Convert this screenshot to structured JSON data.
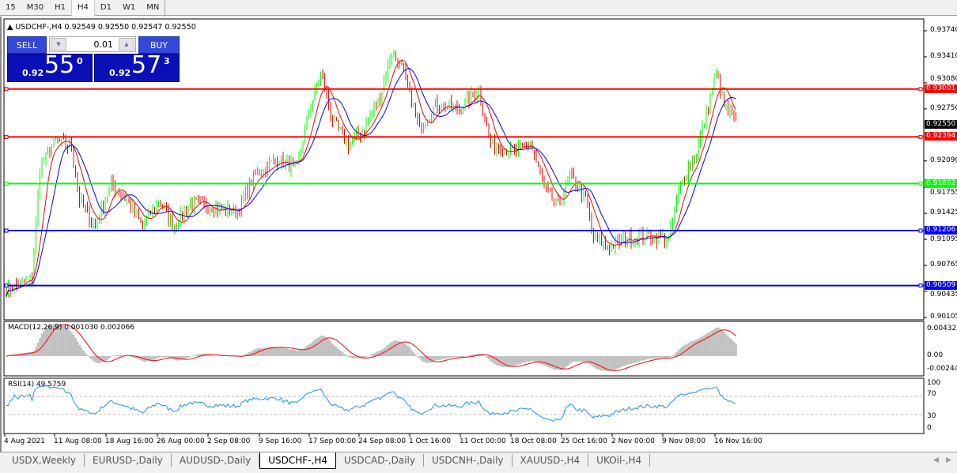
{
  "timeframes": [
    "15",
    "M30",
    "H1",
    "H4",
    "D1",
    "W1",
    "MN"
  ],
  "active_timeframe": "H4",
  "chart": {
    "symbol_line": "USDCHF-,H4  0.92549 0.92550 0.92547 0.92550"
  },
  "trade_panel": {
    "sell_label": "SELL",
    "buy_label": "BUY",
    "lot": "0.01",
    "sell_small": "0.92",
    "sell_big": "55",
    "sell_sup": "0",
    "buy_small": "0.92",
    "buy_big": "57",
    "buy_sup": "3"
  },
  "price_axis": [
    "0.93740",
    "0.93410",
    "0.93080",
    "0.92750",
    "0.92090",
    "0.91755",
    "0.91425",
    "0.91095",
    "0.90765",
    "0.90435",
    "0.90105"
  ],
  "current_price": "0.92550",
  "hlines": [
    {
      "price": "0.93001",
      "color": "#ff0000"
    },
    {
      "price": "0.92394",
      "color": "#ff0000"
    },
    {
      "price": "0.91802",
      "color": "#00ff00"
    },
    {
      "price": "0.91206",
      "color": "#0000ff"
    },
    {
      "price": "0.90509",
      "color": "#0000ff"
    }
  ],
  "macd": {
    "label": "MACD(12,26,9) 0.001030 0.002066",
    "axis": [
      "0.004323",
      "0.00",
      "-0.002445"
    ]
  },
  "rsi": {
    "label": "RSI(14) 49.5759",
    "axis": [
      "100",
      "70",
      "30",
      "0"
    ]
  },
  "time_axis": [
    "4 Aug 2021",
    "11 Aug 08:00",
    "18 Aug 16:00",
    "26 Aug 00:00",
    "2 Sep 08:00",
    "9 Sep 16:00",
    "17 Sep 00:00",
    "24 Sep 08:00",
    "1 Oct 16:00",
    "11 Oct 00:00",
    "18 Oct 08:00",
    "25 Oct 16:00",
    "2 Nov 00:00",
    "9 Nov 08:00",
    "16 Nov 16:00"
  ],
  "tabs": [
    "USDX,Weekly",
    "EURUSD-,Daily",
    "AUDUSD-,Daily",
    "USDCHF-,H4",
    "USDCAD-,Daily",
    "USDCNH-,Daily",
    "XAUUSD-,H4",
    "UKOil-,H4"
  ],
  "active_tab": "USDCHF-,H4",
  "colors": {
    "bull": "#00ff00",
    "bear": "#ff0000",
    "ma_fast": "#ff0000",
    "ma_slow": "#0000ff",
    "macd_hist": "#c0c0c0",
    "macd_signal": "#ff0000",
    "rsi": "#1e90ff",
    "panel_blue": "#0a10b8"
  },
  "chart_data": {
    "type": "candlestick",
    "price_keypoints_by_bar": [
      [
        0,
        0.9045
      ],
      [
        13,
        0.906
      ],
      [
        17,
        0.92
      ],
      [
        25,
        0.9235
      ],
      [
        33,
        0.9225
      ],
      [
        37,
        0.916
      ],
      [
        45,
        0.9125
      ],
      [
        53,
        0.918
      ],
      [
        61,
        0.916
      ],
      [
        69,
        0.9125
      ],
      [
        77,
        0.916
      ],
      [
        85,
        0.9125
      ],
      [
        93,
        0.9155
      ],
      [
        105,
        0.915
      ],
      [
        117,
        0.9145
      ],
      [
        125,
        0.919
      ],
      [
        137,
        0.921
      ],
      [
        147,
        0.92
      ],
      [
        153,
        0.927
      ],
      [
        159,
        0.932
      ],
      [
        165,
        0.926
      ],
      [
        173,
        0.923
      ],
      [
        181,
        0.925
      ],
      [
        189,
        0.929
      ],
      [
        195,
        0.935
      ],
      [
        201,
        0.932
      ],
      [
        209,
        0.925
      ],
      [
        217,
        0.928
      ],
      [
        229,
        0.9275
      ],
      [
        239,
        0.93
      ],
      [
        245,
        0.923
      ],
      [
        257,
        0.922
      ],
      [
        265,
        0.923
      ],
      [
        273,
        0.917
      ],
      [
        279,
        0.915
      ],
      [
        285,
        0.919
      ],
      [
        293,
        0.916
      ],
      [
        297,
        0.911
      ],
      [
        305,
        0.91
      ],
      [
        313,
        0.911
      ],
      [
        325,
        0.9115
      ],
      [
        335,
        0.911
      ],
      [
        341,
        0.918
      ],
      [
        349,
        0.922
      ],
      [
        355,
        0.928
      ],
      [
        359,
        0.932
      ],
      [
        363,
        0.928
      ],
      [
        369,
        0.9255
      ]
    ]
  }
}
